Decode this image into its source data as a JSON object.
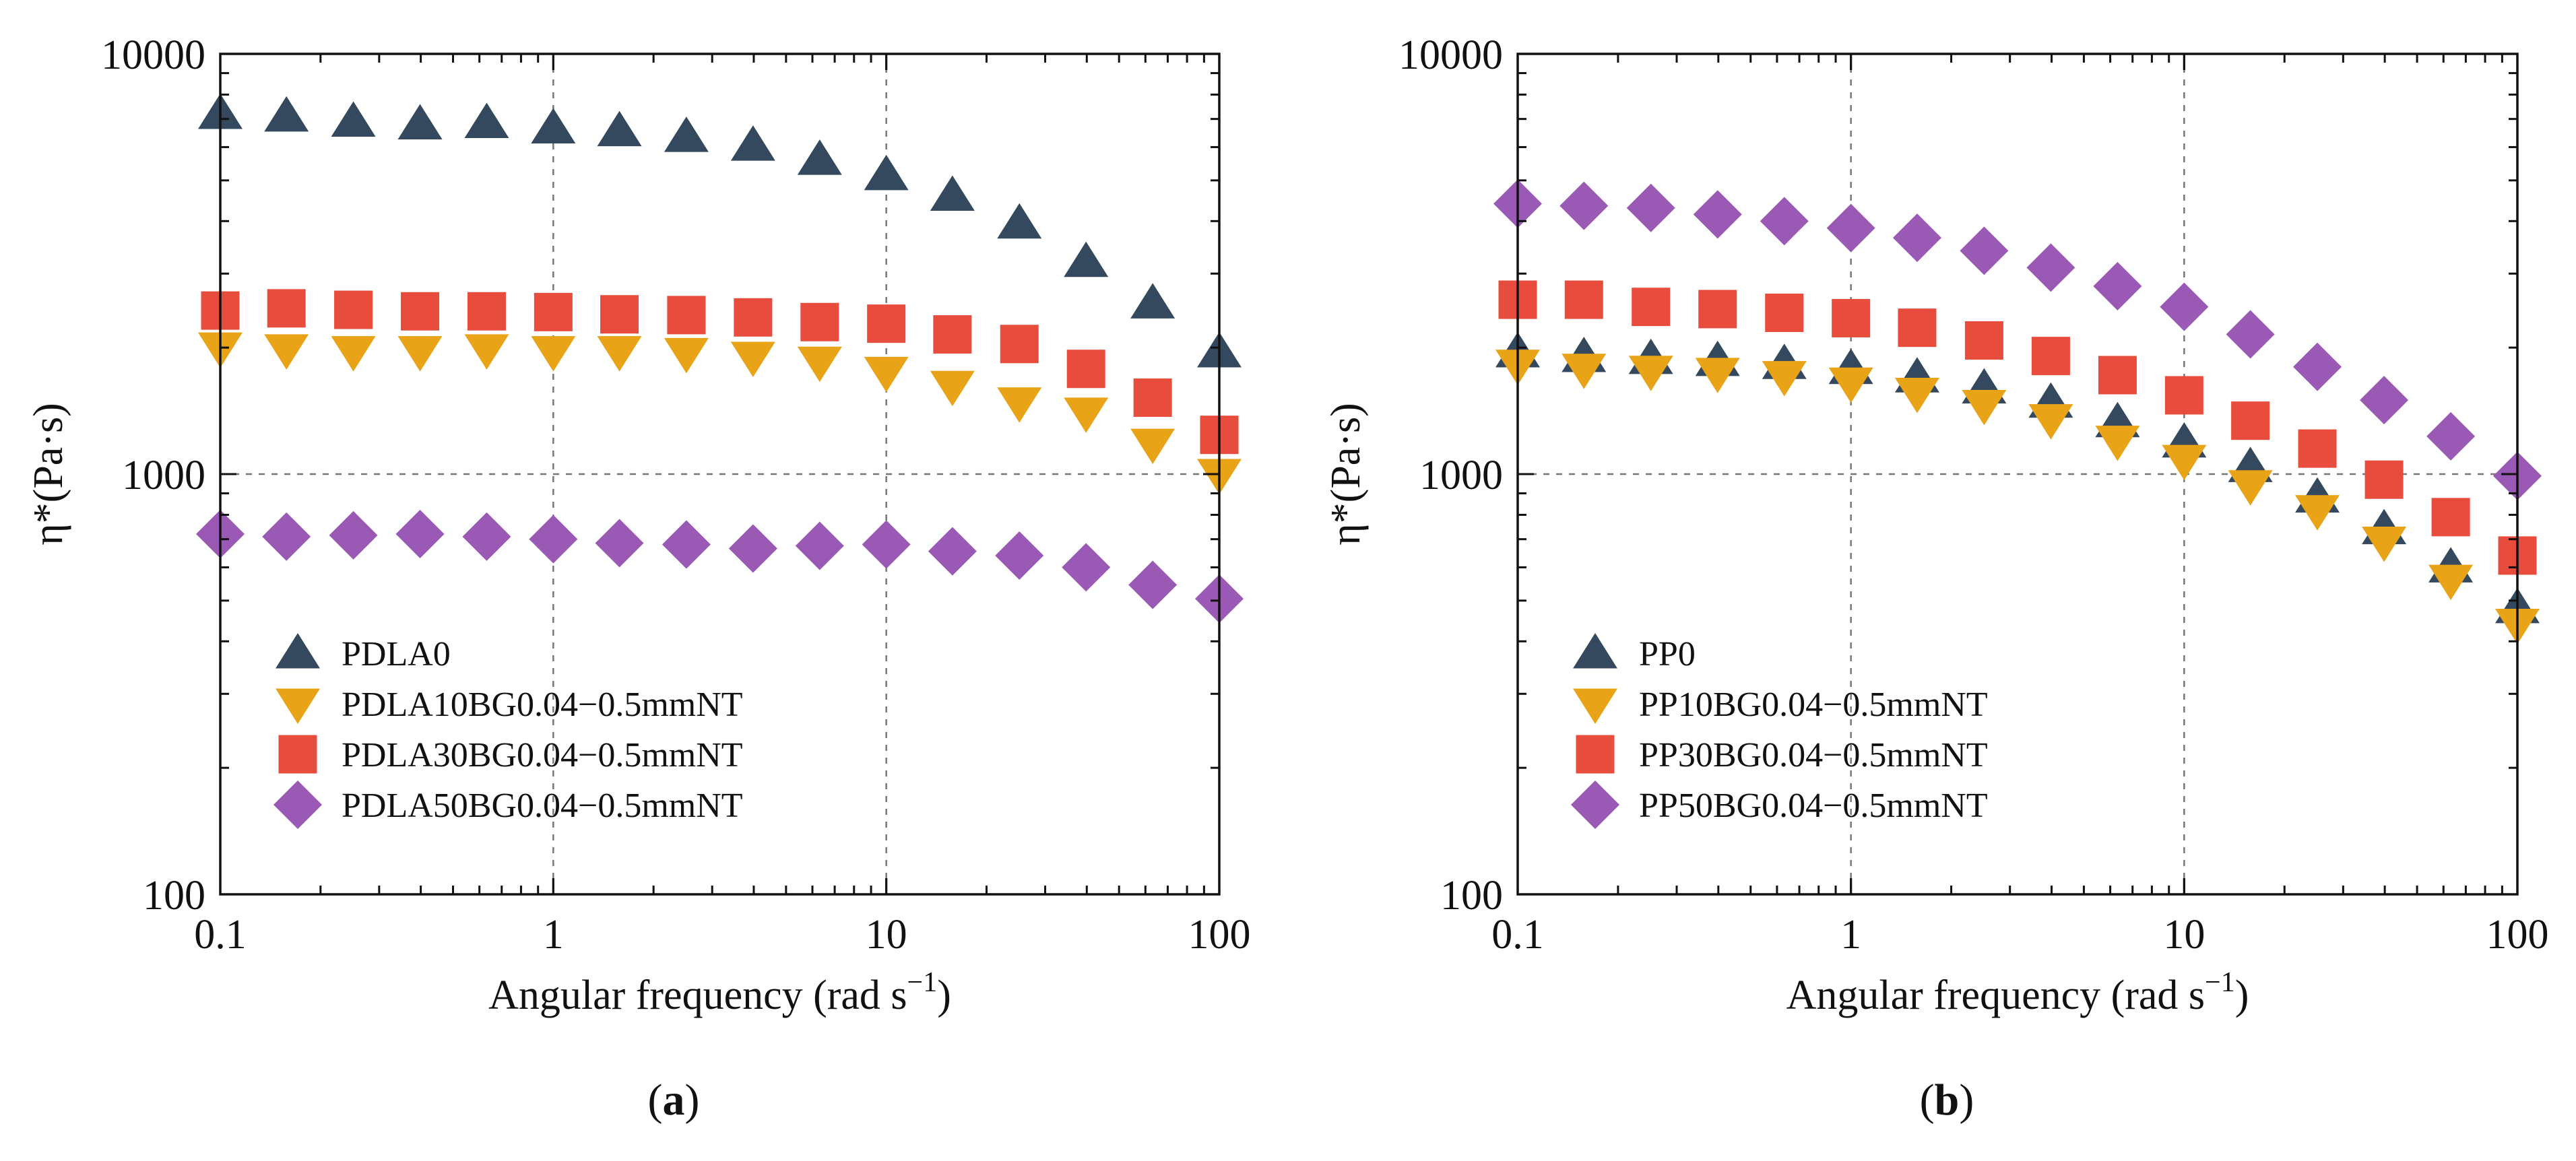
{
  "chart_data": [
    {
      "type": "scatter",
      "panel_label": "a",
      "xscale": "log",
      "yscale": "log",
      "xlim": [
        0.1,
        100
      ],
      "ylim": [
        100,
        10000
      ],
      "xticks": [
        "0.1",
        "1",
        "10",
        "100"
      ],
      "yticks": [
        "100",
        "1000",
        "10000"
      ],
      "xlabel": "Angular frequency (rad s",
      "xlabel_exp": "−1",
      "xlabel_close": ")",
      "ylabel": "η*(Pa·s)",
      "grid": "dashed at decades",
      "legend_position": "bottom-left",
      "x": [
        0.1,
        0.158,
        0.251,
        0.398,
        0.631,
        1,
        1.58,
        2.51,
        3.98,
        6.31,
        10,
        15.8,
        25.1,
        39.8,
        63.1,
        100
      ],
      "series": [
        {
          "name": "PDLA0",
          "marker": "triangle-up",
          "color": "#34495e",
          "values": [
            7200,
            7100,
            6900,
            6800,
            6850,
            6650,
            6550,
            6350,
            6050,
            5600,
            5150,
            4600,
            3950,
            3200,
            2550,
            1950
          ]
        },
        {
          "name": "PDLA10BG0.04−0.5mmNT",
          "marker": "triangle-down",
          "color": "#e8a317",
          "values": [
            2000,
            1980,
            1960,
            1960,
            1980,
            1960,
            1960,
            1940,
            1900,
            1850,
            1750,
            1620,
            1480,
            1400,
            1180,
            1000
          ]
        },
        {
          "name": "PDLA30BG0.04−0.5mmNT",
          "marker": "square",
          "color": "#e74c3c",
          "values": [
            2450,
            2480,
            2460,
            2440,
            2440,
            2430,
            2400,
            2390,
            2360,
            2300,
            2280,
            2150,
            2040,
            1780,
            1520,
            1240
          ]
        },
        {
          "name": "PDLA50BG0.04−0.5mmNT",
          "marker": "diamond",
          "color": "#9b59b6",
          "values": [
            720,
            710,
            715,
            720,
            710,
            700,
            685,
            680,
            665,
            675,
            680,
            655,
            640,
            600,
            545,
            505
          ]
        }
      ]
    },
    {
      "type": "scatter",
      "panel_label": "b",
      "xscale": "log",
      "yscale": "log",
      "xlim": [
        0.1,
        100
      ],
      "ylim": [
        100,
        10000
      ],
      "xticks": [
        "0.1",
        "1",
        "10",
        "100"
      ],
      "yticks": [
        "100",
        "1000",
        "10000"
      ],
      "xlabel": "Angular frequency (rad s",
      "xlabel_exp": "−1",
      "xlabel_close": ")",
      "ylabel": "η*(Pa·s)",
      "grid": "dashed at decades",
      "legend_position": "bottom-left",
      "x": [
        0.1,
        0.158,
        0.251,
        0.398,
        0.631,
        1,
        1.58,
        2.51,
        3.98,
        6.31,
        10,
        15.8,
        25.1,
        39.8,
        63.1,
        100
      ],
      "series": [
        {
          "name": "PP0",
          "marker": "triangle-up",
          "color": "#34495e",
          "values": [
            1950,
            1900,
            1880,
            1860,
            1830,
            1780,
            1700,
            1600,
            1480,
            1330,
            1190,
            1040,
            880,
            740,
            600,
            480
          ]
        },
        {
          "name": "PP10BG0.04−0.5mmNT",
          "marker": "triangle-down",
          "color": "#e8a317",
          "values": [
            1820,
            1780,
            1760,
            1740,
            1710,
            1650,
            1560,
            1460,
            1350,
            1200,
            1080,
            940,
            820,
            690,
            560,
            440
          ]
        },
        {
          "name": "PP30BG0.04−0.5mmNT",
          "marker": "square",
          "color": "#e74c3c",
          "values": [
            2600,
            2600,
            2500,
            2470,
            2420,
            2350,
            2230,
            2080,
            1910,
            1720,
            1540,
            1340,
            1150,
            970,
            790,
            640
          ]
        },
        {
          "name": "PP50BG0.04−0.5mmNT",
          "marker": "diamond",
          "color": "#9b59b6",
          "values": [
            4400,
            4350,
            4300,
            4150,
            4000,
            3850,
            3650,
            3400,
            3100,
            2800,
            2500,
            2150,
            1800,
            1500,
            1230,
            990
          ]
        }
      ]
    }
  ]
}
